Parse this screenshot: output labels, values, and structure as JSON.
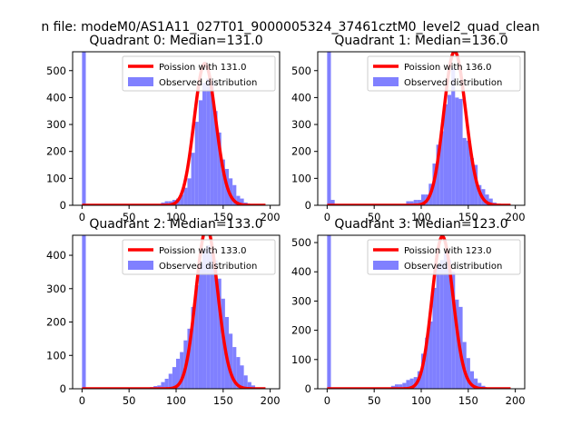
{
  "figure": {
    "suptitle": "n file: modeM0/AS1A11_027T01_9000005324_37461cztM0_level2_quad_clean"
  },
  "chart_data": [
    {
      "type": "bar+line",
      "title": "Quadrant 0: Median=131.0",
      "median": 131.0,
      "xlim": [
        -10,
        210
      ],
      "ylim": [
        0,
        570
      ],
      "xticks": [
        0,
        50,
        100,
        150,
        200
      ],
      "yticks": [
        0,
        100,
        200,
        300,
        400,
        500
      ],
      "legend": [
        "Poission with 131.0",
        "Observed distribution"
      ],
      "legend_position": "top-right",
      "zero_bin_height": 570,
      "bin_width": 4,
      "bins": [
        {
          "x": 84,
          "h": 10
        },
        {
          "x": 88,
          "h": 15
        },
        {
          "x": 92,
          "h": 15
        },
        {
          "x": 96,
          "h": 20
        },
        {
          "x": 100,
          "h": 25
        },
        {
          "x": 104,
          "h": 40
        },
        {
          "x": 108,
          "h": 65
        },
        {
          "x": 112,
          "h": 100
        },
        {
          "x": 116,
          "h": 195
        },
        {
          "x": 120,
          "h": 310
        },
        {
          "x": 124,
          "h": 390
        },
        {
          "x": 128,
          "h": 455
        },
        {
          "x": 132,
          "h": 470
        },
        {
          "x": 136,
          "h": 460
        },
        {
          "x": 140,
          "h": 350
        },
        {
          "x": 144,
          "h": 270
        },
        {
          "x": 148,
          "h": 170
        },
        {
          "x": 152,
          "h": 135
        },
        {
          "x": 156,
          "h": 100
        },
        {
          "x": 160,
          "h": 75
        },
        {
          "x": 164,
          "h": 35
        },
        {
          "x": 168,
          "h": 25
        },
        {
          "x": 172,
          "h": 10
        },
        {
          "x": 176,
          "h": 5
        }
      ],
      "series_colors": {
        "poisson": "#ff0000",
        "observed": "#8080ff"
      }
    },
    {
      "type": "bar+line",
      "title": "Quadrant 1: Median=136.0",
      "median": 136.0,
      "xlim": [
        -10,
        210
      ],
      "ylim": [
        0,
        570
      ],
      "xticks": [
        0,
        50,
        100,
        150,
        200
      ],
      "yticks": [
        0,
        100,
        200,
        300,
        400,
        500
      ],
      "legend": [
        "Poission with 136.0",
        "Observed distribution"
      ],
      "legend_position": "top-right",
      "zero_bin_height": 570,
      "bin_width": 4,
      "bins": [
        {
          "x": 4,
          "h": 20
        },
        {
          "x": 84,
          "h": 15
        },
        {
          "x": 88,
          "h": 15
        },
        {
          "x": 92,
          "h": 20
        },
        {
          "x": 96,
          "h": 20
        },
        {
          "x": 100,
          "h": 40
        },
        {
          "x": 104,
          "h": 40
        },
        {
          "x": 108,
          "h": 80
        },
        {
          "x": 112,
          "h": 155
        },
        {
          "x": 116,
          "h": 225
        },
        {
          "x": 120,
          "h": 275
        },
        {
          "x": 124,
          "h": 375
        },
        {
          "x": 128,
          "h": 410
        },
        {
          "x": 132,
          "h": 510
        },
        {
          "x": 136,
          "h": 400
        },
        {
          "x": 140,
          "h": 395
        },
        {
          "x": 144,
          "h": 250
        },
        {
          "x": 148,
          "h": 240
        },
        {
          "x": 152,
          "h": 175
        },
        {
          "x": 156,
          "h": 150
        },
        {
          "x": 160,
          "h": 75
        },
        {
          "x": 164,
          "h": 60
        },
        {
          "x": 168,
          "h": 40
        },
        {
          "x": 172,
          "h": 25
        },
        {
          "x": 176,
          "h": 10
        }
      ],
      "series_colors": {
        "poisson": "#ff0000",
        "observed": "#8080ff"
      }
    },
    {
      "type": "bar+line",
      "title": "Quadrant 2: Median=133.0",
      "median": 133.0,
      "xlim": [
        -10,
        210
      ],
      "ylim": [
        0,
        460
      ],
      "xticks": [
        0,
        50,
        100,
        150,
        200
      ],
      "yticks": [
        0,
        100,
        200,
        300,
        400
      ],
      "legend": [
        "Poission with 133.0",
        "Observed distribution"
      ],
      "legend_position": "top-right",
      "zero_bin_height": 460,
      "bin_width": 4,
      "bins": [
        {
          "x": 72,
          "h": 5
        },
        {
          "x": 76,
          "h": 8
        },
        {
          "x": 80,
          "h": 10
        },
        {
          "x": 84,
          "h": 20
        },
        {
          "x": 88,
          "h": 30
        },
        {
          "x": 92,
          "h": 45
        },
        {
          "x": 96,
          "h": 65
        },
        {
          "x": 100,
          "h": 90
        },
        {
          "x": 104,
          "h": 110
        },
        {
          "x": 108,
          "h": 145
        },
        {
          "x": 112,
          "h": 180
        },
        {
          "x": 116,
          "h": 245
        },
        {
          "x": 120,
          "h": 310
        },
        {
          "x": 124,
          "h": 375
        },
        {
          "x": 128,
          "h": 420
        },
        {
          "x": 132,
          "h": 430
        },
        {
          "x": 136,
          "h": 410
        },
        {
          "x": 140,
          "h": 385
        },
        {
          "x": 144,
          "h": 330
        },
        {
          "x": 148,
          "h": 270
        },
        {
          "x": 152,
          "h": 215
        },
        {
          "x": 156,
          "h": 165
        },
        {
          "x": 160,
          "h": 125
        },
        {
          "x": 164,
          "h": 95
        },
        {
          "x": 168,
          "h": 70
        },
        {
          "x": 172,
          "h": 40
        },
        {
          "x": 176,
          "h": 20
        },
        {
          "x": 180,
          "h": 10
        }
      ],
      "series_colors": {
        "poisson": "#ff0000",
        "observed": "#8080ff"
      }
    },
    {
      "type": "bar+line",
      "title": "Quadrant 3: Median=123.0",
      "median": 123.0,
      "xlim": [
        -10,
        210
      ],
      "ylim": [
        0,
        525
      ],
      "xticks": [
        0,
        50,
        100,
        150,
        200
      ],
      "yticks": [
        0,
        100,
        200,
        300,
        400,
        500
      ],
      "legend": [
        "Poission with 123.0",
        "Observed distribution"
      ],
      "legend_position": "top-right",
      "zero_bin_height": 525,
      "bin_width": 4,
      "bins": [
        {
          "x": 68,
          "h": 10
        },
        {
          "x": 72,
          "h": 15
        },
        {
          "x": 76,
          "h": 15
        },
        {
          "x": 80,
          "h": 20
        },
        {
          "x": 84,
          "h": 30
        },
        {
          "x": 88,
          "h": 35
        },
        {
          "x": 92,
          "h": 40
        },
        {
          "x": 96,
          "h": 60
        },
        {
          "x": 100,
          "h": 120
        },
        {
          "x": 104,
          "h": 175
        },
        {
          "x": 108,
          "h": 230
        },
        {
          "x": 112,
          "h": 345
        },
        {
          "x": 116,
          "h": 425
        },
        {
          "x": 120,
          "h": 440
        },
        {
          "x": 124,
          "h": 465
        },
        {
          "x": 128,
          "h": 440
        },
        {
          "x": 132,
          "h": 400
        },
        {
          "x": 136,
          "h": 305
        },
        {
          "x": 140,
          "h": 280
        },
        {
          "x": 144,
          "h": 160
        },
        {
          "x": 148,
          "h": 105
        },
        {
          "x": 152,
          "h": 60
        },
        {
          "x": 156,
          "h": 35
        },
        {
          "x": 160,
          "h": 20
        },
        {
          "x": 164,
          "h": 10
        }
      ],
      "series_colors": {
        "poisson": "#ff0000",
        "observed": "#8080ff"
      }
    }
  ]
}
